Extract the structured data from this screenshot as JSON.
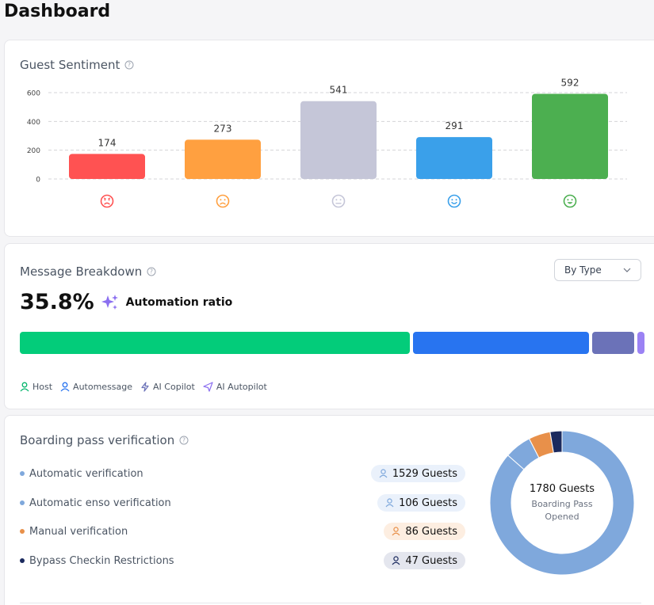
{
  "page": {
    "title": "Dashboard"
  },
  "sentiment": {
    "title": "Guest Sentiment",
    "help_icon": "help-circle-icon"
  },
  "chart_data": {
    "type": "bar",
    "title": "Guest Sentiment",
    "categories": [
      "very-negative-face-icon",
      "negative-face-icon",
      "neutral-face-icon",
      "positive-face-icon",
      "very-positive-face-icon"
    ],
    "values": [
      174,
      273,
      541,
      291,
      592
    ],
    "colors": [
      "#ff5252",
      "#ffa040",
      "#c5c6d8",
      "#3aa0ea",
      "#4caf50"
    ],
    "ylim": [
      0,
      600
    ],
    "yticks": [
      0,
      200,
      400,
      600
    ],
    "grid": true,
    "xlabel": "",
    "ylabel": ""
  },
  "message": {
    "title": "Message Breakdown",
    "dropdown_value": "By Type",
    "ratio_value": "35.8%",
    "ratio_label": "Automation ratio",
    "ratio_icon": "sparkles-icon",
    "segments": [
      {
        "name": "Host",
        "share": 0.627,
        "color": "#03cc7a"
      },
      {
        "name": "Automessage",
        "share": 0.283,
        "color": "#2874f0"
      },
      {
        "name": "AI Copilot",
        "share": 0.067,
        "color": "#6b72b8"
      },
      {
        "name": "AI Autopilot",
        "share": 0.012,
        "color": "#9b82f4"
      }
    ],
    "legend": [
      {
        "label": "Host",
        "icon": "user-icon",
        "color": "#03b56b"
      },
      {
        "label": "Automessage",
        "icon": "user-icon",
        "color": "#2874f0"
      },
      {
        "label": "AI Copilot",
        "icon": "lightning-icon",
        "color": "#6b72b8"
      },
      {
        "label": "AI Autopilot",
        "icon": "send-icon",
        "color": "#8b6ff0"
      }
    ]
  },
  "boarding": {
    "title": "Boarding pass verification",
    "rows": [
      {
        "label": "Automatic verification",
        "count": "1529 Guests",
        "dot": "#7fa8dc",
        "pill_bg": "#eaf1fb",
        "icon_color": "#7fa8dc"
      },
      {
        "label": "Automatic enso verification",
        "count": "106 Guests",
        "dot": "#7fa8dc",
        "pill_bg": "#eaf1fb",
        "icon_color": "#7fa8dc"
      },
      {
        "label": "Manual verification",
        "count": "86 Guests",
        "dot": "#e8904a",
        "pill_bg": "#fdeee1",
        "icon_color": "#e8904a"
      },
      {
        "label": "Bypass Checkin Restrictions",
        "count": "47 Guests",
        "dot": "#1b2a5e",
        "pill_bg": "#e4e6ee",
        "icon_color": "#1b2a5e"
      }
    ],
    "donut": {
      "total": "1780 Guests",
      "subtitle": "Boarding Pass Opened",
      "values": [
        1529,
        106,
        86,
        47
      ],
      "colors": [
        "#7fa8dc",
        "#7fa8dc",
        "#e8904a",
        "#1b2a5e"
      ]
    }
  }
}
